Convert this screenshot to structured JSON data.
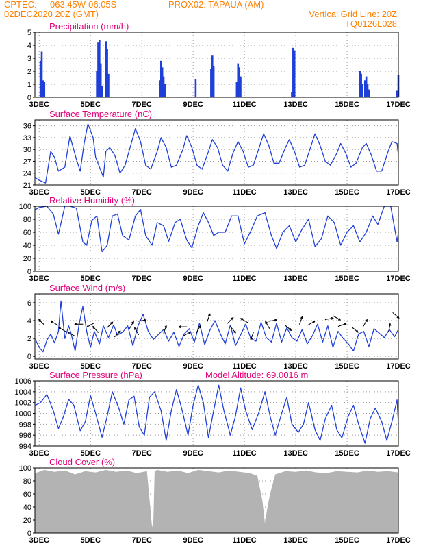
{
  "header": {
    "source": "CPTEC:",
    "coords": "063:45W-06:05S",
    "location": "PROX02: TAPAUA (AM)",
    "datetime": "02DEC2020 20Z (GMT)",
    "grid_note": "Vertical Grid Line: 20Z",
    "run_id": "TQ0126L028"
  },
  "colors": {
    "header": "#ff8000",
    "panel_title": "#e0007a",
    "series": "#1f3fd9",
    "cloud_fill": "#b3b3b3",
    "grid": "#9a9a9a"
  },
  "x_axis": {
    "tick_labels": [
      "3DEC",
      "5DEC",
      "7DEC",
      "9DEC",
      "11DEC",
      "13DEC",
      "15DEC",
      "17DEC"
    ],
    "range_days": [
      2.833,
      17.0
    ]
  },
  "chart_data": [
    {
      "type": "bar",
      "title": "Precipitation (mm/h)",
      "ylim": [
        0,
        5
      ],
      "yticks": [
        0,
        1,
        2,
        3,
        4,
        5
      ],
      "x": [
        3.05,
        3.1,
        3.15,
        3.2,
        5.25,
        5.3,
        5.35,
        5.4,
        5.45,
        5.6,
        5.65,
        5.7,
        7.7,
        7.75,
        7.8,
        7.85,
        7.9,
        9.1,
        9.7,
        9.75,
        9.8,
        10.7,
        10.75,
        10.8,
        10.85,
        12.85,
        12.9,
        12.95,
        15.5,
        15.55,
        15.6,
        15.7,
        15.75,
        15.8,
        15.85,
        16.95,
        17.0
      ],
      "values": [
        2.8,
        3.5,
        1.3,
        1.2,
        2.0,
        4.2,
        4.4,
        2.6,
        0.9,
        4.3,
        3.7,
        1.8,
        1.3,
        2.8,
        2.3,
        1.6,
        1.0,
        1.4,
        2.2,
        3.2,
        2.4,
        1.2,
        2.6,
        2.3,
        1.6,
        0.4,
        3.8,
        3.6,
        2.0,
        1.8,
        1.0,
        1.3,
        1.6,
        1.0,
        0.6,
        0.5,
        1.7
      ]
    },
    {
      "type": "line",
      "title": "Surface Temperature (nC)",
      "ylim": [
        21,
        37.5
      ],
      "yticks": [
        21,
        24,
        27,
        30,
        33,
        36
      ],
      "x": [
        2.85,
        3.0,
        3.25,
        3.45,
        3.6,
        3.75,
        4.0,
        4.2,
        4.45,
        4.6,
        4.75,
        4.9,
        5.1,
        5.2,
        5.5,
        5.6,
        5.75,
        5.95,
        6.15,
        6.35,
        6.6,
        6.75,
        6.95,
        7.15,
        7.35,
        7.6,
        7.75,
        7.95,
        8.15,
        8.35,
        8.6,
        8.75,
        8.95,
        9.15,
        9.35,
        9.6,
        9.75,
        9.95,
        10.15,
        10.35,
        10.55,
        10.75,
        10.95,
        11.15,
        11.35,
        11.6,
        11.75,
        11.95,
        12.15,
        12.35,
        12.6,
        12.75,
        12.95,
        13.15,
        13.35,
        13.6,
        13.75,
        13.95,
        14.15,
        14.35,
        14.6,
        14.75,
        14.95,
        15.15,
        15.35,
        15.6,
        15.75,
        15.95,
        16.15,
        16.35,
        16.6,
        16.75,
        16.95,
        17.0
      ],
      "values": [
        22.8,
        22.2,
        21.5,
        29.5,
        28.0,
        24.5,
        25.5,
        33.4,
        27.5,
        24.5,
        31.5,
        36.5,
        33.0,
        28.0,
        23.0,
        29.5,
        30.5,
        28.5,
        24.0,
        26.0,
        31.8,
        35.3,
        32.0,
        26.0,
        25.0,
        29.5,
        33.0,
        30.5,
        25.5,
        26.0,
        30.0,
        33.5,
        30.5,
        26.0,
        25.0,
        29.5,
        32.5,
        30.5,
        26.0,
        24.5,
        29.0,
        32.0,
        29.5,
        25.5,
        26.0,
        31.0,
        34.0,
        31.0,
        26.5,
        26.5,
        30.5,
        32.5,
        29.5,
        25.5,
        26.0,
        31.0,
        34.0,
        31.0,
        27.0,
        26.0,
        29.0,
        31.5,
        29.0,
        25.5,
        26.5,
        30.5,
        31.5,
        28.5,
        24.5,
        24.5,
        29.5,
        32.0,
        31.5,
        28.5
      ]
    },
    {
      "type": "line",
      "title": "Relative Humidity (%)",
      "ylim": [
        0,
        100
      ],
      "yticks": [
        0,
        20,
        40,
        60,
        80,
        100
      ],
      "x": [
        2.85,
        3.0,
        3.3,
        3.55,
        3.75,
        4.0,
        4.2,
        4.45,
        4.7,
        4.85,
        5.05,
        5.25,
        5.45,
        5.65,
        5.85,
        6.05,
        6.25,
        6.5,
        6.75,
        6.95,
        7.15,
        7.4,
        7.6,
        7.85,
        8.05,
        8.3,
        8.5,
        8.75,
        8.95,
        9.2,
        9.4,
        9.6,
        9.8,
        10.0,
        10.25,
        10.5,
        10.75,
        11.0,
        11.25,
        11.5,
        11.8,
        12.05,
        12.25,
        12.5,
        12.75,
        13.0,
        13.25,
        13.5,
        13.75,
        14.0,
        14.25,
        14.5,
        14.75,
        15.0,
        15.25,
        15.5,
        15.75,
        16.0,
        16.2,
        16.45,
        16.7,
        16.95,
        17.0
      ],
      "values": [
        95,
        98,
        100,
        88,
        57,
        100,
        100,
        97,
        45,
        40,
        78,
        85,
        30,
        40,
        85,
        88,
        55,
        48,
        85,
        95,
        55,
        40,
        75,
        70,
        46,
        75,
        80,
        48,
        36,
        70,
        90,
        75,
        55,
        60,
        60,
        85,
        85,
        42,
        62,
        85,
        90,
        55,
        35,
        60,
        70,
        45,
        65,
        80,
        38,
        50,
        85,
        75,
        40,
        60,
        70,
        45,
        60,
        85,
        72,
        100,
        100,
        45,
        60
      ]
    },
    {
      "type": "line",
      "title": "Surface Wind (m/s)",
      "ylim": [
        -0.3,
        7
      ],
      "yticks": [
        0,
        2,
        4,
        6
      ],
      "x": [
        2.85,
        3.0,
        3.15,
        3.3,
        3.45,
        3.6,
        3.75,
        3.85,
        4.0,
        4.15,
        4.25,
        4.4,
        4.55,
        4.7,
        4.85,
        5.0,
        5.15,
        5.35,
        5.5,
        5.7,
        5.9,
        6.05,
        6.25,
        6.45,
        6.65,
        6.85,
        7.05,
        7.25,
        7.45,
        7.7,
        7.85,
        8.05,
        8.25,
        8.45,
        8.65,
        8.85,
        9.05,
        9.25,
        9.45,
        9.65,
        9.85,
        10.05,
        10.25,
        10.45,
        10.65,
        10.85,
        11.05,
        11.25,
        11.45,
        11.65,
        11.85,
        12.05,
        12.25,
        12.45,
        12.65,
        12.85,
        13.05,
        13.25,
        13.45,
        13.65,
        13.85,
        14.05,
        14.25,
        14.45,
        14.65,
        14.85,
        15.05,
        15.25,
        15.45,
        15.65,
        15.85,
        16.05,
        16.25,
        16.45,
        16.65,
        16.85,
        17.0
      ],
      "values": [
        1.9,
        1.0,
        0.5,
        1.8,
        2.5,
        1.5,
        2.8,
        6.2,
        2.0,
        3.4,
        2.5,
        0.6,
        3.5,
        5.6,
        2.8,
        1.0,
        2.8,
        1.4,
        3.4,
        2.1,
        3.5,
        2.4,
        2.7,
        3.4,
        1.2,
        3.4,
        4.7,
        2.8,
        1.9,
        2.6,
        3.0,
        1.7,
        2.7,
        1.1,
        2.5,
        3.1,
        1.6,
        3.7,
        1.3,
        2.9,
        4.0,
        2.6,
        1.4,
        3.5,
        1.2,
        2.4,
        3.6,
        2.0,
        1.7,
        3.8,
        2.1,
        1.6,
        3.7,
        1.6,
        3.2,
        2.1,
        1.7,
        3.0,
        1.4,
        2.3,
        3.6,
        1.6,
        3.4,
        1.0,
        2.8,
        2.0,
        1.4,
        0.6,
        2.5,
        2.8,
        1.1,
        3.1,
        2.6,
        2.1,
        3.0,
        2.2,
        3.0
      ]
    },
    {
      "type": "line",
      "title": "Surface Pressure (hPa)",
      "annotation": "Model Altitude: 69.0016 m",
      "ylim": [
        994,
        1006
      ],
      "yticks": [
        994,
        996,
        998,
        1000,
        1002,
        1004,
        1006
      ],
      "x": [
        2.85,
        3.05,
        3.3,
        3.55,
        3.75,
        3.95,
        4.15,
        4.35,
        4.6,
        4.8,
        5.0,
        5.2,
        5.45,
        5.65,
        5.85,
        6.1,
        6.3,
        6.5,
        6.7,
        6.9,
        7.1,
        7.3,
        7.5,
        7.75,
        7.95,
        8.15,
        8.35,
        8.55,
        8.8,
        9.0,
        9.2,
        9.4,
        9.6,
        9.8,
        10.0,
        10.2,
        10.45,
        10.65,
        10.85,
        11.05,
        11.3,
        11.55,
        11.8,
        12.0,
        12.2,
        12.45,
        12.65,
        12.85,
        13.1,
        13.3,
        13.5,
        13.75,
        13.95,
        14.15,
        14.4,
        14.6,
        14.8,
        15.05,
        15.25,
        15.45,
        15.7,
        15.9,
        16.1,
        16.35,
        16.55,
        16.75,
        16.95,
        17.0
      ],
      "values": [
        1001.5,
        1002.0,
        1003.5,
        1000.5,
        997.2,
        999.5,
        1002.6,
        1001.5,
        996.8,
        998.5,
        1003.3,
        1000.0,
        995.6,
        999.5,
        1004.0,
        1001.0,
        998.0,
        1002.5,
        1003.2,
        997.5,
        996.0,
        1003.0,
        1004.0,
        1000.5,
        995.0,
        1000.5,
        1004.4,
        1001.0,
        996.0,
        1001.5,
        1005.2,
        1002.0,
        995.5,
        1000.5,
        1005.2,
        1000.5,
        996.0,
        999.5,
        1004.7,
        1000.5,
        997.0,
        1000.0,
        1004.0,
        999.5,
        996.0,
        1000.0,
        1003.0,
        998.0,
        996.5,
        998.0,
        1002.0,
        997.0,
        995.0,
        999.0,
        1001.5,
        997.0,
        995.5,
        999.5,
        1001.5,
        998.0,
        994.5,
        999.0,
        1001.0,
        998.5,
        995.0,
        998.5,
        1002.5,
        998.0
      ]
    },
    {
      "type": "area",
      "title": "Cloud Cover (%)",
      "ylim": [
        0,
        100
      ],
      "yticks": [
        0,
        20,
        40,
        60,
        80,
        100
      ],
      "x": [
        2.85,
        3.2,
        3.6,
        4.0,
        4.4,
        4.8,
        5.2,
        5.6,
        6.0,
        6.4,
        6.8,
        7.2,
        7.4,
        7.45,
        7.5,
        7.6,
        8.0,
        8.4,
        8.8,
        9.2,
        9.6,
        10.0,
        10.4,
        10.8,
        11.2,
        11.5,
        11.7,
        11.8,
        11.9,
        12.0,
        12.2,
        12.6,
        13.0,
        13.4,
        13.8,
        14.2,
        14.6,
        15.0,
        15.4,
        15.8,
        16.2,
        16.6,
        17.0
      ],
      "values": [
        92,
        97,
        94,
        96,
        90,
        95,
        93,
        97,
        94,
        96,
        92,
        95,
        8,
        20,
        95,
        97,
        94,
        96,
        92,
        97,
        95,
        93,
        96,
        94,
        92,
        88,
        50,
        15,
        40,
        60,
        90,
        95,
        94,
        96,
        93,
        92,
        95,
        94,
        93,
        96,
        94,
        95,
        93
      ]
    }
  ],
  "wind_arrows": [
    {
      "day": 3.1,
      "value": 3.8,
      "dir_deg": 315
    },
    {
      "day": 3.6,
      "value": 3.7,
      "dir_deg": 300
    },
    {
      "day": 3.9,
      "value": 3.0,
      "dir_deg": 300
    },
    {
      "day": 4.25,
      "value": 2.5,
      "dir_deg": 300
    },
    {
      "day": 4.55,
      "value": 3.6,
      "dir_deg": 270
    },
    {
      "day": 5.0,
      "value": 3.5,
      "dir_deg": 240
    },
    {
      "day": 5.2,
      "value": 3.0,
      "dir_deg": 320
    },
    {
      "day": 5.75,
      "value": 3.5,
      "dir_deg": 45
    },
    {
      "day": 6.05,
      "value": 2.5,
      "dir_deg": 45
    },
    {
      "day": 6.6,
      "value": 3.5,
      "dir_deg": 30
    },
    {
      "day": 6.8,
      "value": 2.8,
      "dir_deg": 330
    },
    {
      "day": 7.0,
      "value": 4.0,
      "dir_deg": 80
    },
    {
      "day": 7.9,
      "value": 3.0,
      "dir_deg": 20
    },
    {
      "day": 8.6,
      "value": 3.3,
      "dir_deg": 270
    },
    {
      "day": 8.75,
      "value": 2.5,
      "dir_deg": 60
    },
    {
      "day": 9.2,
      "value": 3.0,
      "dir_deg": 30
    },
    {
      "day": 9.6,
      "value": 4.3,
      "dir_deg": 20
    },
    {
      "day": 10.45,
      "value": 4.0,
      "dir_deg": 45
    },
    {
      "day": 10.55,
      "value": 3.0,
      "dir_deg": 140
    },
    {
      "day": 11.0,
      "value": 4.0,
      "dir_deg": 300
    },
    {
      "day": 11.3,
      "value": 2.3,
      "dir_deg": 200
    },
    {
      "day": 11.9,
      "value": 3.5,
      "dir_deg": 330
    },
    {
      "day": 12.1,
      "value": 4.0,
      "dir_deg": 80
    },
    {
      "day": 12.7,
      "value": 3.2,
      "dir_deg": 130
    },
    {
      "day": 13.2,
      "value": 4.0,
      "dir_deg": 20
    },
    {
      "day": 13.6,
      "value": 3.7,
      "dir_deg": 60
    },
    {
      "day": 14.3,
      "value": 4.2,
      "dir_deg": 80
    },
    {
      "day": 14.6,
      "value": 4.3,
      "dir_deg": 120
    },
    {
      "day": 14.8,
      "value": 3.5,
      "dir_deg": 70
    },
    {
      "day": 15.3,
      "value": 3.0,
      "dir_deg": 130
    },
    {
      "day": 15.7,
      "value": 3.7,
      "dir_deg": 30
    },
    {
      "day": 16.65,
      "value": 3.2,
      "dir_deg": 10
    },
    {
      "day": 16.9,
      "value": 4.6,
      "dir_deg": 130
    }
  ]
}
